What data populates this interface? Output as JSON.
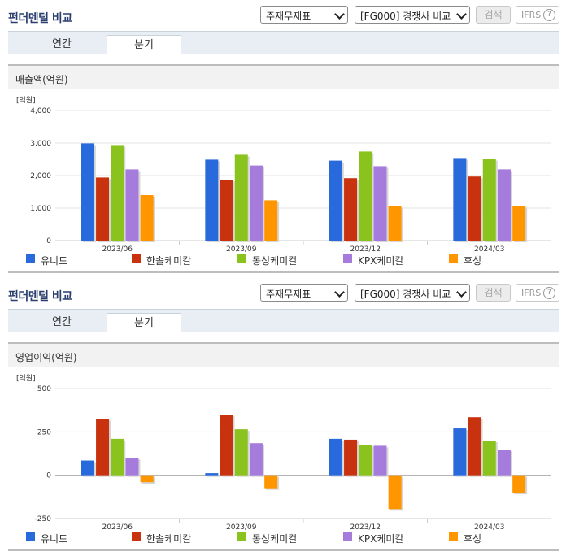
{
  "colors": {
    "s1": "#2869dc",
    "s2": "#c8320e",
    "s3": "#8ac31e",
    "s4": "#a57bdc",
    "s5": "#ff9600"
  },
  "icons": {
    "dropdown": "chevron-down-icon",
    "help": "question-circle-icon"
  },
  "panels": [
    {
      "title": "펀더멘털 비교",
      "select1": "주재무제표",
      "select2": "[FG000] 경쟁사 비교",
      "search_label": "검색",
      "ifrs_label": "IFRS",
      "help_glyph": "?",
      "tabs": [
        {
          "label": "연간"
        },
        {
          "label": "분기"
        }
      ],
      "active_tab": "분기",
      "subtitle": "매출액(억원)",
      "chart_data": {
        "type": "bar",
        "unit": "[억원]",
        "categories": [
          "2023/06",
          "2023/09",
          "2023/12",
          "2024/03"
        ],
        "ylim": [
          0,
          4000
        ],
        "yticks": [
          0,
          1000,
          2000,
          3000,
          4000
        ],
        "ytick_labels": [
          "0",
          "1,000",
          "2,000",
          "3,000",
          "4,000"
        ],
        "grid": true,
        "legend_position": "bottom",
        "series": [
          {
            "name": "유니드",
            "values": [
              2990,
              2490,
              2460,
              2540
            ]
          },
          {
            "name": "한솔케미칼",
            "values": [
              1940,
              1870,
              1920,
              1970
            ]
          },
          {
            "name": "동성케미컬",
            "values": [
              2940,
              2640,
              2740,
              2510
            ]
          },
          {
            "name": "KPX케미칼",
            "values": [
              2190,
              2310,
              2290,
              2190
            ]
          },
          {
            "name": "후성",
            "values": [
              1400,
              1240,
              1050,
              1070
            ]
          }
        ]
      }
    },
    {
      "title": "펀더멘털 비교",
      "select1": "주재무제표",
      "select2": "[FG000] 경쟁사 비교",
      "search_label": "검색",
      "ifrs_label": "IFRS",
      "help_glyph": "?",
      "tabs": [
        {
          "label": "연간"
        },
        {
          "label": "분기"
        }
      ],
      "active_tab": "분기",
      "subtitle": "영업이익(억원)",
      "chart_data": {
        "type": "bar",
        "unit": "[억원]",
        "categories": [
          "2023/06",
          "2023/09",
          "2023/12",
          "2024/03"
        ],
        "ylim": [
          -250,
          500
        ],
        "yticks": [
          -250,
          0,
          250,
          500
        ],
        "ytick_labels": [
          "-250",
          "0",
          "250",
          "500"
        ],
        "grid": true,
        "legend_position": "bottom",
        "series": [
          {
            "name": "유니드",
            "values": [
              85,
              12,
              210,
              270
            ]
          },
          {
            "name": "한솔케미칼",
            "values": [
              325,
              350,
              205,
              335
            ]
          },
          {
            "name": "동성케미컬",
            "values": [
              210,
              265,
              175,
              200
            ]
          },
          {
            "name": "KPX케미칼",
            "values": [
              100,
              185,
              170,
              148
            ]
          },
          {
            "name": "후성",
            "values": [
              -40,
              -75,
              -195,
              -100
            ]
          }
        ]
      }
    }
  ]
}
